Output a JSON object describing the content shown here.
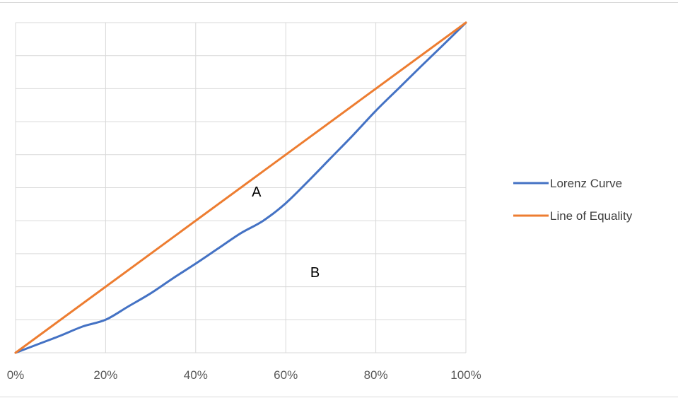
{
  "chart_data": {
    "type": "line",
    "title": "",
    "xlabel": "",
    "ylabel": "",
    "xlim": [
      0,
      100
    ],
    "ylim": [
      0,
      100
    ],
    "grid": true,
    "legend_position": "right",
    "x_ticks": [
      "0%",
      "20%",
      "40%",
      "60%",
      "80%",
      "100%"
    ],
    "series": [
      {
        "name": "Lorenz Curve",
        "color": "#4472C4",
        "x": [
          0,
          5,
          10,
          15,
          20,
          25,
          30,
          35,
          40,
          45,
          50,
          55,
          60,
          65,
          70,
          75,
          80,
          85,
          90,
          95,
          100
        ],
        "y": [
          0,
          2.6,
          5.2,
          8,
          10,
          14,
          18,
          22.6,
          27,
          31.6,
          36.2,
          40,
          45.3,
          52,
          59,
          66,
          73.3,
          80,
          86.7,
          93.3,
          100
        ]
      },
      {
        "name": "Line of Equality",
        "color": "#ED7D31",
        "x": [
          0,
          100
        ],
        "y": [
          0,
          100
        ]
      }
    ],
    "annotations": [
      {
        "text": "A",
        "x": 53.5,
        "y": 48.5
      },
      {
        "text": "B",
        "x": 66.5,
        "y": 24
      }
    ]
  }
}
